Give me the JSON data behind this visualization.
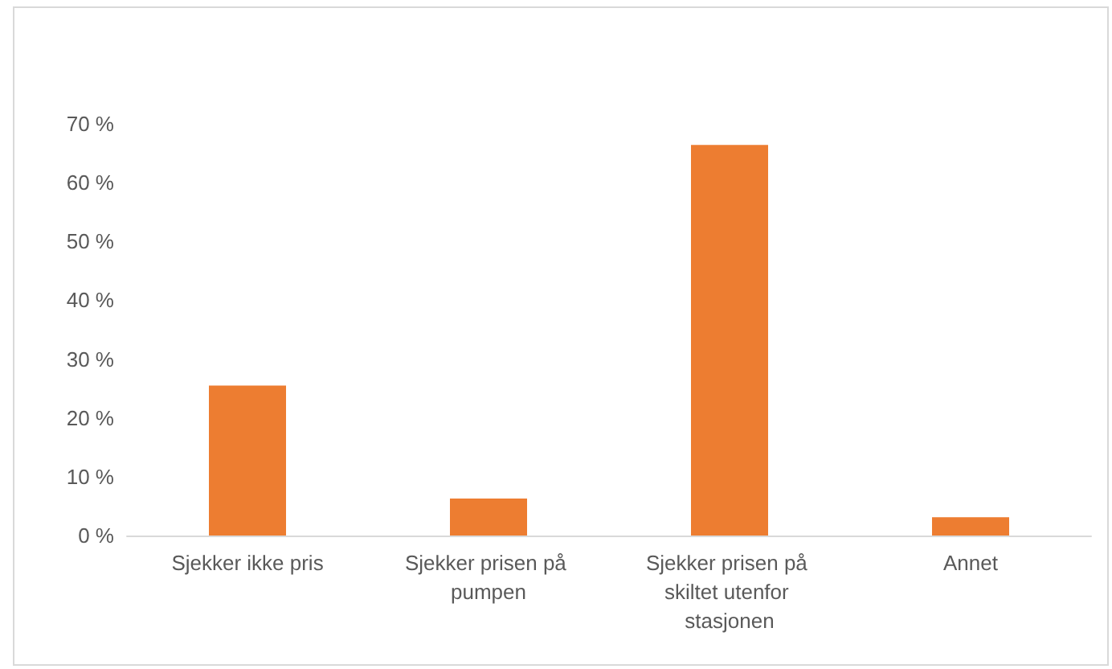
{
  "chart_data": {
    "type": "bar",
    "categories": [
      "Sjekker ikke pris",
      "Sjekker prisen på pumpen",
      "Sjekker prisen på skiltet utenfor stasjonen",
      "Annet"
    ],
    "values": [
      25.5,
      6.3,
      66.4,
      3.1
    ],
    "color": "#ed7d31",
    "ylim": [
      0,
      70
    ],
    "yticks": [
      {
        "value": 0,
        "label": "0 %"
      },
      {
        "value": 10,
        "label": "10 %"
      },
      {
        "value": 20,
        "label": "20 %"
      },
      {
        "value": 30,
        "label": "30 %"
      },
      {
        "value": 40,
        "label": "40 %"
      },
      {
        "value": 50,
        "label": "50 %"
      },
      {
        "value": 60,
        "label": "60 %"
      },
      {
        "value": 70,
        "label": "70 %"
      }
    ],
    "grid": false
  }
}
